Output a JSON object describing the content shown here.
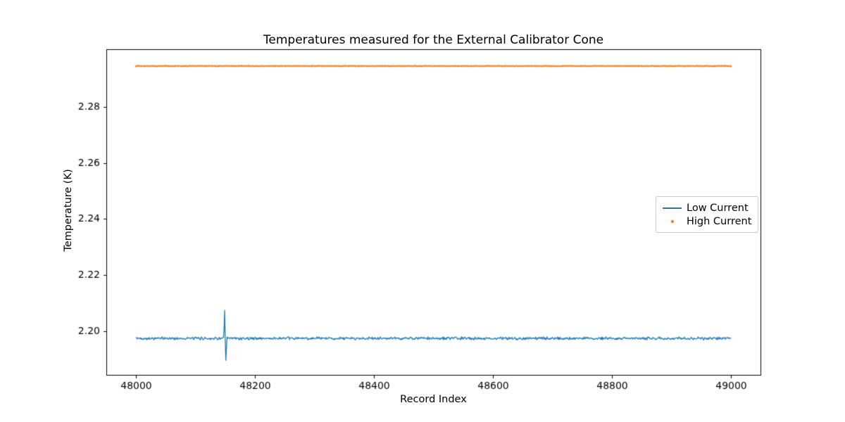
{
  "chart_data": {
    "type": "line",
    "title": "Temperatures measured for the External Calibrator Cone",
    "xlabel": "Record Index",
    "ylabel": "Temperature (K)",
    "xlim": [
      47950,
      49050
    ],
    "ylim": [
      2.1845,
      2.3005
    ],
    "grid": false,
    "xticks": {
      "values": [
        48000,
        48200,
        48400,
        48600,
        48800,
        49000
      ],
      "labels": [
        "48000",
        "48200",
        "48400",
        "48600",
        "48800",
        "49000"
      ]
    },
    "yticks": {
      "values": [
        2.2,
        2.22,
        2.24,
        2.26,
        2.28
      ],
      "labels": [
        "2.20",
        "2.22",
        "2.24",
        "2.26",
        "2.28"
      ]
    },
    "legend": {
      "position": "center right",
      "entries": [
        {
          "label": "Low Current",
          "color": "#1f77b4",
          "marker": "line"
        },
        {
          "label": "High Current",
          "color": "#ff7f0e",
          "marker": "dot"
        }
      ]
    },
    "series": [
      {
        "name": "Low Current",
        "type": "line",
        "color": "#1f77b4",
        "x_start": 48000,
        "x_end": 49000,
        "n_points": 1001,
        "baseline": 2.1975,
        "noise_amplitude": 0.0006,
        "seed": 42,
        "spike": {
          "x": 48150,
          "points": [
            [
              -2,
              2.201
            ],
            [
              -1,
              2.2075
            ],
            [
              0,
              2.197
            ],
            [
              1,
              2.1897
            ],
            [
              2,
              2.1942
            ]
          ]
        }
      },
      {
        "name": "High Current",
        "type": "scatter",
        "color": "#ff7f0e",
        "x_start": 48000,
        "x_end": 49000,
        "n_points": 334,
        "baseline": 2.2945,
        "noise_amplitude": 8e-05,
        "seed": 7,
        "marker_radius": 1.4
      }
    ]
  }
}
